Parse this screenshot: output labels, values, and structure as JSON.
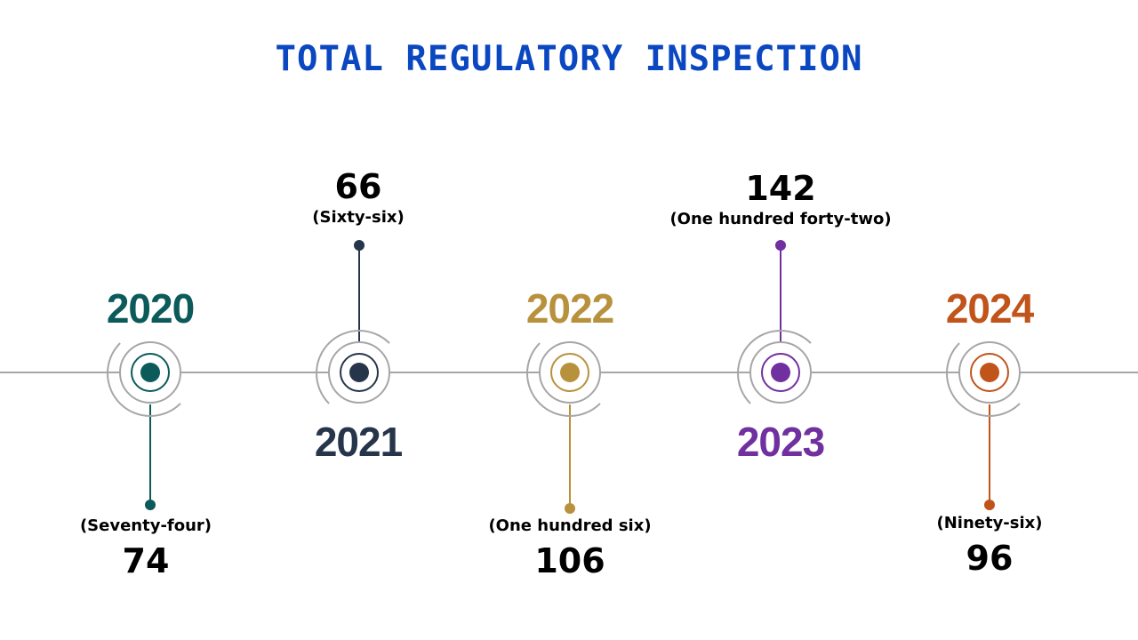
{
  "title": "TOTAL REGULATORY INSPECTION",
  "colors": {
    "title": "#0a47c0",
    "axis": "#a6a6a6",
    "y2020": "#0d5a5a",
    "y2021": "#26354a",
    "y2022": "#b8913d",
    "y2023": "#7030a0",
    "y2024": "#c0541a"
  },
  "milestones": [
    {
      "year": "2020",
      "value": "74",
      "value_words": "(Seventy-four)"
    },
    {
      "year": "2021",
      "value": "66",
      "value_words": "(Sixty-six)"
    },
    {
      "year": "2022",
      "value": "106",
      "value_words": "(One hundred six)"
    },
    {
      "year": "2023",
      "value": "142",
      "value_words": "(One hundred forty-two)"
    },
    {
      "year": "2024",
      "value": "96",
      "value_words": "(Ninety-six)"
    }
  ]
}
